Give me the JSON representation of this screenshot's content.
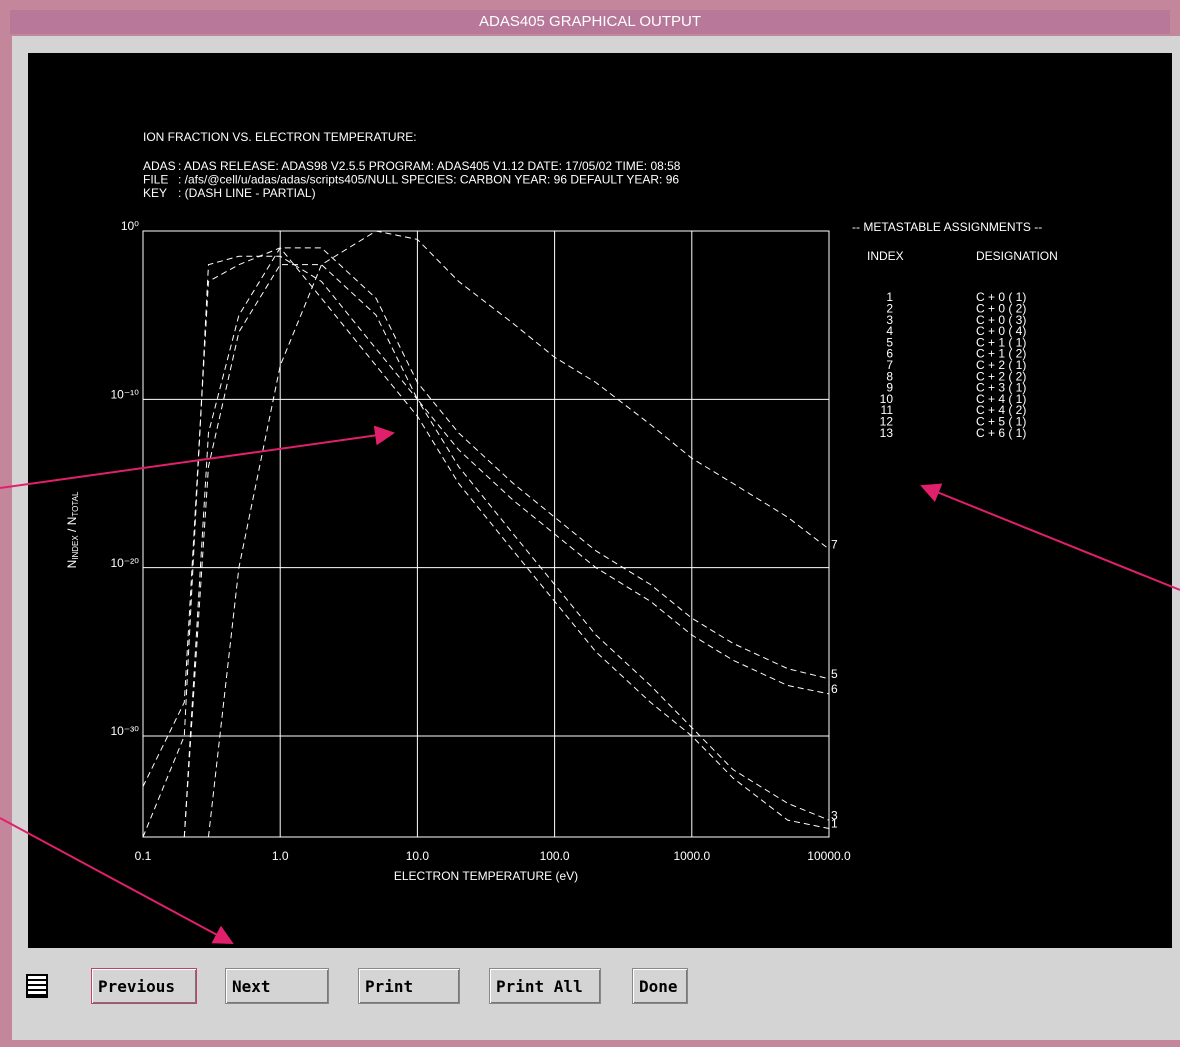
{
  "window": {
    "title": "ADAS405 GRAPHICAL OUTPUT"
  },
  "header": {
    "title": "ION FRACTION VS. ELECTRON TEMPERATURE:",
    "rows": [
      [
        "ADAS",
        ": ADAS RELEASE: ADAS98 V2.5.5 PROGRAM: ADAS405 V1.12 DATE: 17/05/02 TIME: 08:58"
      ],
      [
        "FILE",
        ": /afs/@cell/u/adas/adas/scripts405/NULL   SPECIES: CARBON    YEAR: 96    DEFAULT YEAR: 96"
      ],
      [
        "KEY",
        ": (DASH LINE - PARTIAL)"
      ]
    ]
  },
  "chart_data": {
    "type": "line",
    "log_x": true,
    "log_y": true,
    "grid": true,
    "color": "#ffffff",
    "xlabel": "ELECTRON TEMPERATURE (eV)",
    "ylabel": [
      "N",
      "INDEX",
      " / N",
      "TOTAL"
    ],
    "x": [
      0.1,
      0.2,
      0.3,
      0.5,
      1,
      2,
      5,
      10,
      20,
      50,
      100,
      200,
      500,
      1000,
      2000,
      5000,
      10000
    ],
    "xlim": [
      0.1,
      10000
    ],
    "ylim": [
      1e-36,
      1
    ],
    "xticks": [
      0.1,
      {
        "value": 1,
        "label": "1.0"
      },
      {
        "value": 10,
        "label": "10.0"
      },
      {
        "value": 100,
        "label": "100.0"
      },
      {
        "value": 1000,
        "label": "1000.0"
      },
      {
        "value": 10000,
        "label": "10000.0"
      }
    ],
    "yticks": [
      {
        "value": 1e-30,
        "label": "10⁻³⁰"
      },
      {
        "value": 1e-20,
        "label": "10⁻²⁰"
      },
      {
        "value": 1e-10,
        "label": "10⁻¹⁰"
      },
      {
        "value": 1,
        "label": "10⁰"
      }
    ],
    "series": [
      {
        "name": "7",
        "values": [
          null,
          null,
          1e-36,
          1e-20,
          1e-08,
          0.01,
          1,
          0.316,
          0.001,
          3.16e-06,
          3.16e-08,
          1e-09,
          3.16e-12,
          3.16e-14,
          1e-15,
          1e-17,
          1.26e-19
        ]
      },
      {
        "name": "5",
        "values": [
          null,
          1e-36,
          1e-12,
          1e-05,
          0.1,
          0.1,
          0.0001,
          1e-09,
          1e-12,
          1e-15,
          1e-17,
          1e-19,
          1e-21,
          1e-23,
          3.16e-25,
          1e-26,
          2.5e-27
        ]
      },
      {
        "name": "6",
        "values": [
          null,
          1e-36,
          1e-14,
          1e-06,
          0.01,
          0.01,
          1e-05,
          1e-10,
          1e-13,
          1e-16,
          1e-18,
          1e-20,
          1e-22,
          1e-24,
          3.16e-26,
          1e-27,
          3.2e-28
        ]
      },
      {
        "name": "3",
        "values": [
          1e-36,
          1e-30,
          0.01,
          0.0316,
          0.0316,
          0.001,
          1e-07,
          1e-10,
          1e-14,
          1e-18,
          1e-21,
          1e-24,
          1e-27,
          3.16e-30,
          1e-32,
          1e-34,
          1e-35
        ]
      },
      {
        "name": "1",
        "values": [
          1e-33,
          1e-28,
          0.001,
          0.01,
          0.1,
          0.0001,
          1e-08,
          1e-11,
          1e-15,
          1e-19,
          1e-22,
          1e-25,
          1e-28,
          1e-30,
          3.16e-33,
          1e-35,
          3.2e-36
        ]
      }
    ]
  },
  "metastables": {
    "title": "-- METASTABLE ASSIGNMENTS --",
    "columns": [
      "INDEX",
      "DESIGNATION"
    ],
    "rows": [
      [
        "1",
        "C + 0 ( 1)"
      ],
      [
        "2",
        "C + 0 ( 2)"
      ],
      [
        "3",
        "C + 0 ( 3)"
      ],
      [
        "4",
        "C + 0 ( 4)"
      ],
      [
        "5",
        "C + 1 ( 1)"
      ],
      [
        "6",
        "C + 1 ( 2)"
      ],
      [
        "7",
        "C + 2 ( 1)"
      ],
      [
        "8",
        "C + 2 ( 2)"
      ],
      [
        "9",
        "C + 3 ( 1)"
      ],
      [
        "10",
        "C + 4 ( 1)"
      ],
      [
        "11",
        "C + 4 ( 2)"
      ],
      [
        "12",
        "C + 5 ( 1)"
      ],
      [
        "13",
        "C + 6 ( 1)"
      ]
    ]
  },
  "buttons": [
    "Previous",
    "Next",
    "Print",
    "Print All",
    "Done"
  ]
}
